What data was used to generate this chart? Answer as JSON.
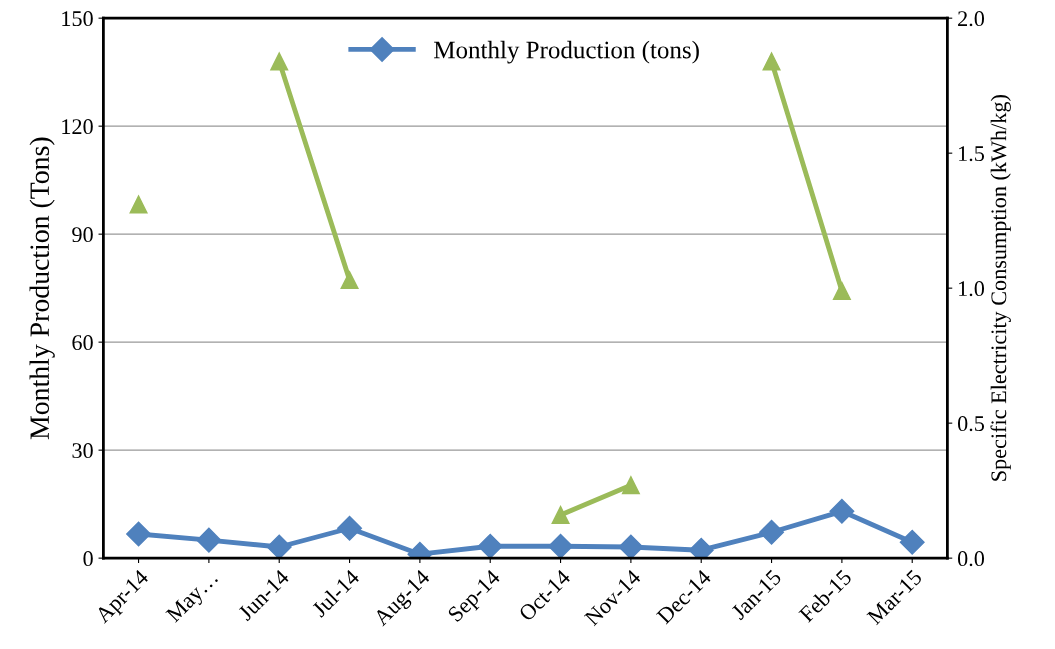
{
  "chart_data": {
    "type": "line",
    "categories": [
      "Apr-14",
      "May…",
      "Jun-14",
      "Jul-14",
      "Aug-14",
      "Sep-14",
      "Oct-14",
      "Nov-14",
      "Dec-14",
      "Jan-15",
      "Feb-15",
      "Mar-15"
    ],
    "series": [
      {
        "name": "Monthly Production (tons)",
        "color": "#4f81bd",
        "marker": "diamond",
        "values": [
          6.7,
          5.0,
          3.1,
          8.3,
          1.1,
          3.3,
          3.3,
          3.1,
          2.2,
          7.2,
          13.0,
          4.4
        ]
      },
      {
        "color": "#9bbb59",
        "marker": "triangle",
        "axis": "y2",
        "values": [
          1.31,
          null,
          1.84,
          1.03,
          null,
          null,
          0.16,
          0.27,
          null,
          1.84,
          0.99,
          null
        ]
      }
    ],
    "ylabel": "Monthly Production (Tons)",
    "y2label": "Specific Electricity Consumption (kWh/kg)",
    "ylim": [
      0,
      150
    ],
    "yticks": [
      0,
      30,
      60,
      90,
      120,
      150
    ],
    "y2lim": [
      0,
      2.0
    ],
    "y2ticks": [
      {
        "value": 0,
        "label": "0.0"
      },
      {
        "value": 0.5,
        "label": "0.5"
      },
      {
        "value": 1.0,
        "label": "1.0"
      },
      {
        "value": 1.5,
        "label": "1.5"
      },
      {
        "value": 2.0,
        "label": "2.0"
      }
    ],
    "grid": "y",
    "legend": "top",
    "line_style": "solid"
  }
}
